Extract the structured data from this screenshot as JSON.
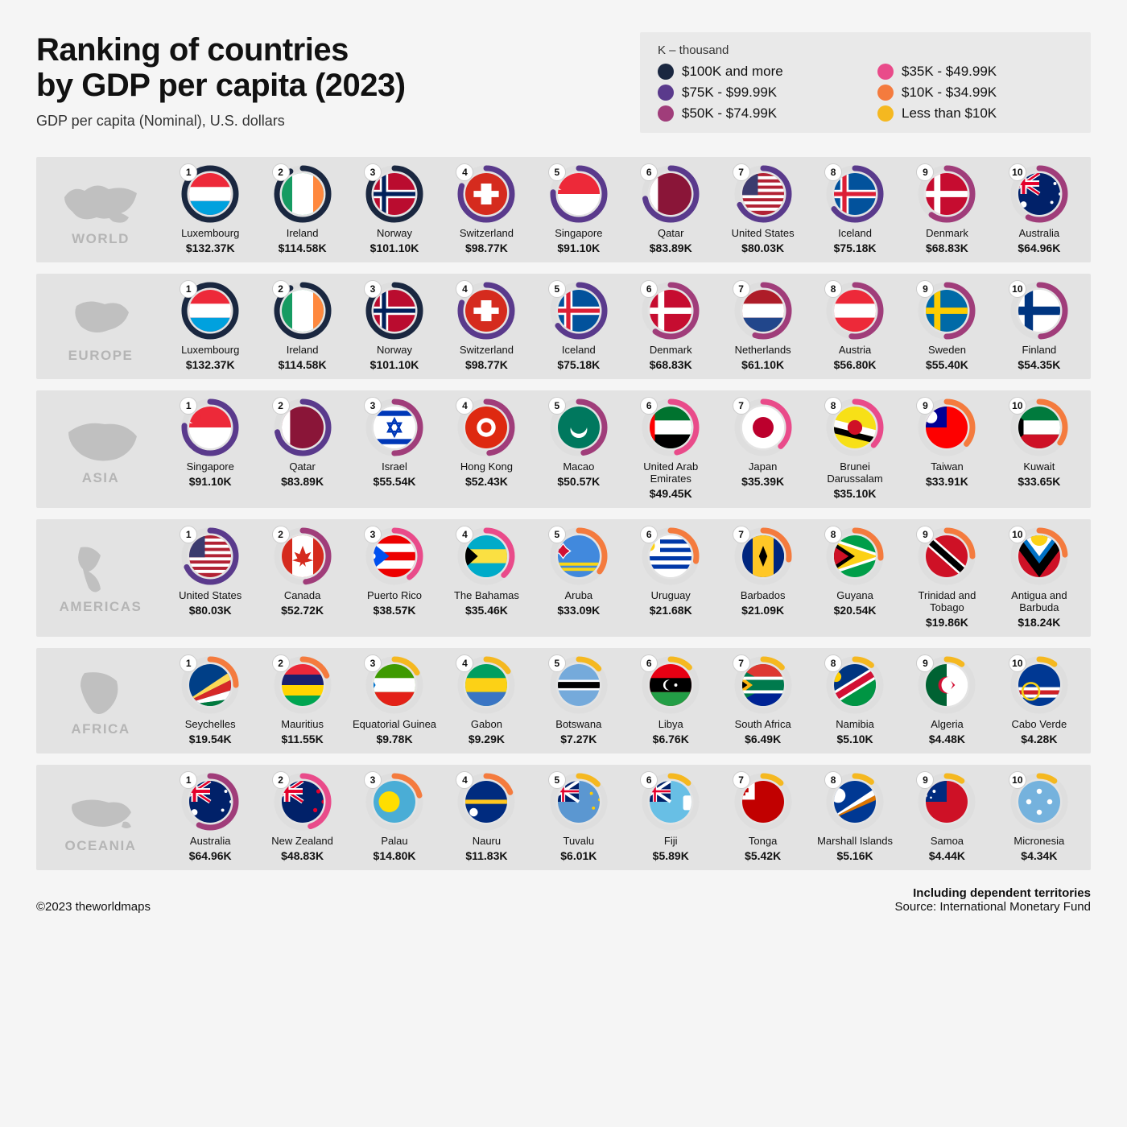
{
  "title": "Ranking of countries\nby GDP per capita (2023)",
  "subtitle": "GDP per capita (Nominal), U.S. dollars",
  "legend": {
    "note": "K – thousand",
    "items": [
      {
        "label": "$100K and more",
        "color": "#1a2740"
      },
      {
        "label": "$35K - $49.99K",
        "color": "#e94b8a"
      },
      {
        "label": "$75K - $99.99K",
        "color": "#5a3a8c"
      },
      {
        "label": "$10K - $34.99K",
        "color": "#f47b3e"
      },
      {
        "label": "$50K - $74.99K",
        "color": "#a03d7a"
      },
      {
        "label": "Less than $10K",
        "color": "#f5b820"
      }
    ]
  },
  "tiers": {
    "t100": "#1a2740",
    "t75": "#5a3a8c",
    "t50": "#a03d7a",
    "t35": "#e94b8a",
    "t10": "#f47b3e",
    "t0": "#f5b820"
  },
  "ring_bg": "#dedede",
  "regions": [
    {
      "name": "WORLD",
      "map": "world",
      "countries": [
        {
          "rank": 1,
          "name": "Luxembourg",
          "value": "$132.37K",
          "tier": "t100",
          "fill": 1.0,
          "flag": "lux"
        },
        {
          "rank": 2,
          "name": "Ireland",
          "value": "$114.58K",
          "tier": "t100",
          "fill": 0.92,
          "flag": "irl"
        },
        {
          "rank": 3,
          "name": "Norway",
          "value": "$101.10K",
          "tier": "t100",
          "fill": 0.85,
          "flag": "nor"
        },
        {
          "rank": 4,
          "name": "Switzerland",
          "value": "$98.77K",
          "tier": "t75",
          "fill": 0.8,
          "flag": "sui"
        },
        {
          "rank": 5,
          "name": "Singapore",
          "value": "$91.10K",
          "tier": "t75",
          "fill": 0.76,
          "flag": "sgp"
        },
        {
          "rank": 6,
          "name": "Qatar",
          "value": "$83.89K",
          "tier": "t75",
          "fill": 0.72,
          "flag": "qat"
        },
        {
          "rank": 7,
          "name": "United States",
          "value": "$80.03K",
          "tier": "t75",
          "fill": 0.68,
          "flag": "usa"
        },
        {
          "rank": 8,
          "name": "Iceland",
          "value": "$75.18K",
          "tier": "t75",
          "fill": 0.65,
          "flag": "isl"
        },
        {
          "rank": 9,
          "name": "Denmark",
          "value": "$68.83K",
          "tier": "t50",
          "fill": 0.6,
          "flag": "den"
        },
        {
          "rank": 10,
          "name": "Australia",
          "value": "$64.96K",
          "tier": "t50",
          "fill": 0.57,
          "flag": "aus"
        }
      ]
    },
    {
      "name": "EUROPE",
      "map": "europe",
      "countries": [
        {
          "rank": 1,
          "name": "Luxembourg",
          "value": "$132.37K",
          "tier": "t100",
          "fill": 1.0,
          "flag": "lux"
        },
        {
          "rank": 2,
          "name": "Ireland",
          "value": "$114.58K",
          "tier": "t100",
          "fill": 0.92,
          "flag": "irl"
        },
        {
          "rank": 3,
          "name": "Norway",
          "value": "$101.10K",
          "tier": "t100",
          "fill": 0.85,
          "flag": "nor"
        },
        {
          "rank": 4,
          "name": "Switzerland",
          "value": "$98.77K",
          "tier": "t75",
          "fill": 0.8,
          "flag": "sui"
        },
        {
          "rank": 5,
          "name": "Iceland",
          "value": "$75.18K",
          "tier": "t75",
          "fill": 0.65,
          "flag": "isl"
        },
        {
          "rank": 6,
          "name": "Denmark",
          "value": "$68.83K",
          "tier": "t50",
          "fill": 0.6,
          "flag": "den"
        },
        {
          "rank": 7,
          "name": "Netherlands",
          "value": "$61.10K",
          "tier": "t50",
          "fill": 0.55,
          "flag": "ned"
        },
        {
          "rank": 8,
          "name": "Austria",
          "value": "$56.80K",
          "tier": "t50",
          "fill": 0.52,
          "flag": "aut"
        },
        {
          "rank": 9,
          "name": "Sweden",
          "value": "$55.40K",
          "tier": "t50",
          "fill": 0.5,
          "flag": "swe"
        },
        {
          "rank": 10,
          "name": "Finland",
          "value": "$54.35K",
          "tier": "t50",
          "fill": 0.49,
          "flag": "fin"
        }
      ]
    },
    {
      "name": "ASIA",
      "map": "asia",
      "countries": [
        {
          "rank": 1,
          "name": "Singapore",
          "value": "$91.10K",
          "tier": "t75",
          "fill": 0.76,
          "flag": "sgp"
        },
        {
          "rank": 2,
          "name": "Qatar",
          "value": "$83.89K",
          "tier": "t75",
          "fill": 0.72,
          "flag": "qat"
        },
        {
          "rank": 3,
          "name": "Israel",
          "value": "$55.54K",
          "tier": "t50",
          "fill": 0.5,
          "flag": "isr"
        },
        {
          "rank": 4,
          "name": "Hong Kong",
          "value": "$52.43K",
          "tier": "t50",
          "fill": 0.48,
          "flag": "hkg"
        },
        {
          "rank": 5,
          "name": "Macao",
          "value": "$50.57K",
          "tier": "t50",
          "fill": 0.47,
          "flag": "mac"
        },
        {
          "rank": 6,
          "name": "United Arab Emirates",
          "value": "$49.45K",
          "tier": "t35",
          "fill": 0.46,
          "flag": "uae"
        },
        {
          "rank": 7,
          "name": "Japan",
          "value": "$35.39K",
          "tier": "t35",
          "fill": 0.38,
          "flag": "jpn"
        },
        {
          "rank": 8,
          "name": "Brunei Darussalam",
          "value": "$35.10K",
          "tier": "t35",
          "fill": 0.37,
          "flag": "bru"
        },
        {
          "rank": 9,
          "name": "Taiwan",
          "value": "$33.91K",
          "tier": "t10",
          "fill": 0.36,
          "flag": "tpe"
        },
        {
          "rank": 10,
          "name": "Kuwait",
          "value": "$33.65K",
          "tier": "t10",
          "fill": 0.35,
          "flag": "kuw"
        }
      ]
    },
    {
      "name": "AMERICAS",
      "map": "americas",
      "countries": [
        {
          "rank": 1,
          "name": "United States",
          "value": "$80.03K",
          "tier": "t75",
          "fill": 0.68,
          "flag": "usa"
        },
        {
          "rank": 2,
          "name": "Canada",
          "value": "$52.72K",
          "tier": "t50",
          "fill": 0.48,
          "flag": "can"
        },
        {
          "rank": 3,
          "name": "Puerto Rico",
          "value": "$38.57K",
          "tier": "t35",
          "fill": 0.4,
          "flag": "pri"
        },
        {
          "rank": 4,
          "name": "The Bahamas",
          "value": "$35.46K",
          "tier": "t35",
          "fill": 0.38,
          "flag": "bah"
        },
        {
          "rank": 5,
          "name": "Aruba",
          "value": "$33.09K",
          "tier": "t10",
          "fill": 0.35,
          "flag": "abw"
        },
        {
          "rank": 6,
          "name": "Uruguay",
          "value": "$21.68K",
          "tier": "t10",
          "fill": 0.28,
          "flag": "uru"
        },
        {
          "rank": 7,
          "name": "Barbados",
          "value": "$21.09K",
          "tier": "t10",
          "fill": 0.27,
          "flag": "brb"
        },
        {
          "rank": 8,
          "name": "Guyana",
          "value": "$20.54K",
          "tier": "t10",
          "fill": 0.26,
          "flag": "guy"
        },
        {
          "rank": 9,
          "name": "Trinidad and Tobago",
          "value": "$19.86K",
          "tier": "t10",
          "fill": 0.25,
          "flag": "tri"
        },
        {
          "rank": 10,
          "name": "Antigua and Barbuda",
          "value": "$18.24K",
          "tier": "t10",
          "fill": 0.24,
          "flag": "atg"
        }
      ]
    },
    {
      "name": "AFRICA",
      "map": "africa",
      "countries": [
        {
          "rank": 1,
          "name": "Seychelles",
          "value": "$19.54K",
          "tier": "t10",
          "fill": 0.25,
          "flag": "sey"
        },
        {
          "rank": 2,
          "name": "Mauritius",
          "value": "$11.55K",
          "tier": "t10",
          "fill": 0.19,
          "flag": "mri"
        },
        {
          "rank": 3,
          "name": "Equatorial Guinea",
          "value": "$9.78K",
          "tier": "t0",
          "fill": 0.17,
          "flag": "geq"
        },
        {
          "rank": 4,
          "name": "Gabon",
          "value": "$9.29K",
          "tier": "t0",
          "fill": 0.16,
          "flag": "gab"
        },
        {
          "rank": 5,
          "name": "Botswana",
          "value": "$7.27K",
          "tier": "t0",
          "fill": 0.14,
          "flag": "bot"
        },
        {
          "rank": 6,
          "name": "Libya",
          "value": "$6.76K",
          "tier": "t0",
          "fill": 0.13,
          "flag": "lby"
        },
        {
          "rank": 7,
          "name": "South Africa",
          "value": "$6.49K",
          "tier": "t0",
          "fill": 0.13,
          "flag": "rsa"
        },
        {
          "rank": 8,
          "name": "Namibia",
          "value": "$5.10K",
          "tier": "t0",
          "fill": 0.11,
          "flag": "nam"
        },
        {
          "rank": 9,
          "name": "Algeria",
          "value": "$4.48K",
          "tier": "t0",
          "fill": 0.1,
          "flag": "alg"
        },
        {
          "rank": 10,
          "name": "Cabo Verde",
          "value": "$4.28K",
          "tier": "t0",
          "fill": 0.1,
          "flag": "cpv"
        }
      ]
    },
    {
      "name": "OCEANIA",
      "map": "oceania",
      "countries": [
        {
          "rank": 1,
          "name": "Australia",
          "value": "$64.96K",
          "tier": "t50",
          "fill": 0.57,
          "flag": "aus"
        },
        {
          "rank": 2,
          "name": "New Zealand",
          "value": "$48.83K",
          "tier": "t35",
          "fill": 0.45,
          "flag": "nzl"
        },
        {
          "rank": 3,
          "name": "Palau",
          "value": "$14.80K",
          "tier": "t10",
          "fill": 0.21,
          "flag": "plw"
        },
        {
          "rank": 4,
          "name": "Nauru",
          "value": "$11.83K",
          "tier": "t10",
          "fill": 0.19,
          "flag": "nru"
        },
        {
          "rank": 5,
          "name": "Tuvalu",
          "value": "$6.01K",
          "tier": "t0",
          "fill": 0.13,
          "flag": "tuv"
        },
        {
          "rank": 6,
          "name": "Fiji",
          "value": "$5.89K",
          "tier": "t0",
          "fill": 0.12,
          "flag": "fij"
        },
        {
          "rank": 7,
          "name": "Tonga",
          "value": "$5.42K",
          "tier": "t0",
          "fill": 0.12,
          "flag": "tga"
        },
        {
          "rank": 8,
          "name": "Marshall Islands",
          "value": "$5.16K",
          "tier": "t0",
          "fill": 0.11,
          "flag": "mhl"
        },
        {
          "rank": 9,
          "name": "Samoa",
          "value": "$4.44K",
          "tier": "t0",
          "fill": 0.1,
          "flag": "sam"
        },
        {
          "rank": 10,
          "name": "Micronesia",
          "value": "$4.34K",
          "tier": "t0",
          "fill": 0.1,
          "flag": "fsm"
        }
      ]
    }
  ],
  "footer": {
    "left": "©2023 theworldmaps",
    "right1": "Including dependent territories",
    "right2": "Source:  International Monetary Fund"
  }
}
